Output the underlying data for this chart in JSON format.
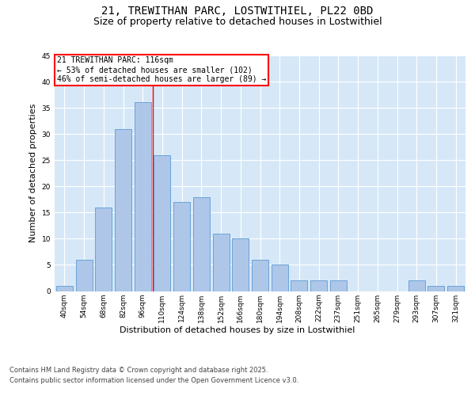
{
  "title_line1": "21, TREWITHAN PARC, LOSTWITHIEL, PL22 0BD",
  "title_line2": "Size of property relative to detached houses in Lostwithiel",
  "xlabel": "Distribution of detached houses by size in Lostwithiel",
  "ylabel": "Number of detached properties",
  "categories": [
    "40sqm",
    "54sqm",
    "68sqm",
    "82sqm",
    "96sqm",
    "110sqm",
    "124sqm",
    "138sqm",
    "152sqm",
    "166sqm",
    "180sqm",
    "194sqm",
    "208sqm",
    "222sqm",
    "237sqm",
    "251sqm",
    "265sqm",
    "279sqm",
    "293sqm",
    "307sqm",
    "321sqm"
  ],
  "values": [
    1,
    6,
    16,
    31,
    36,
    26,
    17,
    18,
    11,
    10,
    6,
    5,
    2,
    2,
    2,
    0,
    0,
    0,
    2,
    1,
    1
  ],
  "bar_color": "#aec6e8",
  "bar_edge_color": "#5b9bd5",
  "background_color": "#d6e8f7",
  "grid_color": "#ffffff",
  "vline_x": 4.5,
  "vline_color": "red",
  "annotation_text": "21 TREWITHAN PARC: 116sqm\n← 53% of detached houses are smaller (102)\n46% of semi-detached houses are larger (89) →",
  "annotation_box_color": "white",
  "annotation_box_edge": "red",
  "ylim": [
    0,
    45
  ],
  "yticks": [
    0,
    5,
    10,
    15,
    20,
    25,
    30,
    35,
    40,
    45
  ],
  "footnote_line1": "Contains HM Land Registry data © Crown copyright and database right 2025.",
  "footnote_line2": "Contains public sector information licensed under the Open Government Licence v3.0.",
  "title_fontsize": 10,
  "subtitle_fontsize": 9,
  "axis_label_fontsize": 8,
  "tick_fontsize": 6.5,
  "annotation_fontsize": 7,
  "footnote_fontsize": 6
}
